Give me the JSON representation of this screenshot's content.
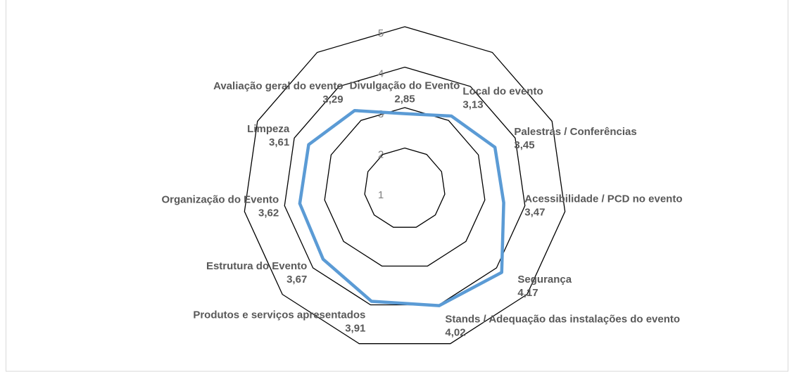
{
  "chart_data": {
    "type": "radar",
    "categories": [
      "Divulgação do Evento",
      "Local do evento",
      "Palestras / Conferências",
      "Acessibilidade / PCD no evento",
      "Segurança",
      "Stands / Adequação das instalações do evento",
      "Produtos e serviços apresentados",
      "Estrutura do Evento",
      "Organização do Evento",
      "Limpeza",
      "Avaliação geral do evento"
    ],
    "values": [
      2.85,
      3.13,
      3.45,
      3.47,
      4.17,
      4.02,
      3.91,
      3.67,
      3.62,
      3.61,
      3.29
    ],
    "value_labels": [
      "2,85",
      "3,13",
      "3,45",
      "3,47",
      "4,17",
      "4,02",
      "3,91",
      "3,67",
      "3,62",
      "3,61",
      "3,29"
    ],
    "color": "#5b9bd5",
    "ylim": [
      1,
      5
    ],
    "yticks": [
      1,
      2,
      3,
      4,
      5
    ],
    "grid": true
  }
}
